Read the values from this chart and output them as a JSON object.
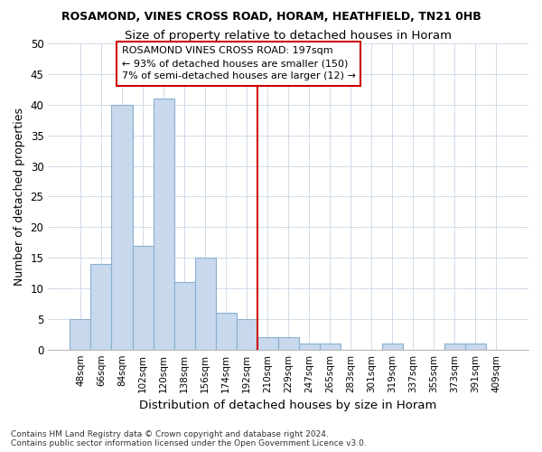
{
  "title": "ROSAMOND, VINES CROSS ROAD, HORAM, HEATHFIELD, TN21 0HB",
  "subtitle": "Size of property relative to detached houses in Horam",
  "xlabel": "Distribution of detached houses by size in Horam",
  "ylabel": "Number of detached properties",
  "bar_labels": [
    "48sqm",
    "66sqm",
    "84sqm",
    "102sqm",
    "120sqm",
    "138sqm",
    "156sqm",
    "174sqm",
    "192sqm",
    "210sqm",
    "229sqm",
    "247sqm",
    "265sqm",
    "283sqm",
    "301sqm",
    "319sqm",
    "337sqm",
    "355sqm",
    "373sqm",
    "391sqm",
    "409sqm"
  ],
  "bar_values": [
    5,
    14,
    40,
    17,
    41,
    11,
    15,
    6,
    5,
    2,
    2,
    1,
    1,
    0,
    0,
    1,
    0,
    0,
    1,
    1,
    0
  ],
  "bar_color": "#c8d8ed",
  "bar_edge_color": "#8ab0d0",
  "vline_x": 8.5,
  "vline_color": "#cc0000",
  "annotation_text": "ROSAMOND VINES CROSS ROAD: 197sqm\n← 93% of detached houses are smaller (150)\n7% of semi-detached houses are larger (12) →",
  "annotation_box_color": "#ffffff",
  "annotation_box_edge": "#cc0000",
  "ylim": [
    0,
    50
  ],
  "yticks": [
    0,
    5,
    10,
    15,
    20,
    25,
    30,
    35,
    40,
    45,
    50
  ],
  "grid_color": "#d0dae8",
  "background_color": "#ffffff",
  "plot_bg_color": "#ffffff",
  "footnote": "Contains HM Land Registry data © Crown copyright and database right 2024.\nContains public sector information licensed under the Open Government Licence v3.0."
}
